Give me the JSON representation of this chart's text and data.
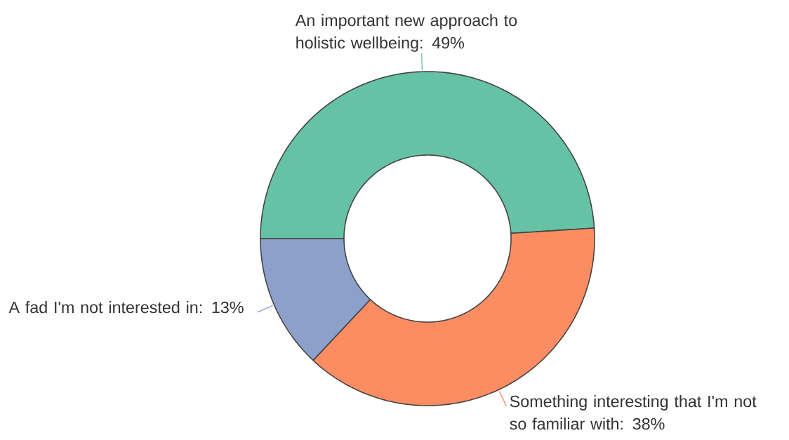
{
  "chart_data": {
    "type": "donut",
    "categories": [
      "An important new approach to holistic wellbeing: 49%",
      "Something interesting that I'm not so familiar with: 38%",
      "A fad I'm not interested in: 13%"
    ],
    "values": [
      49,
      38,
      13
    ],
    "colors": [
      "#66c2a5",
      "#fc8d62",
      "#8da0cb"
    ]
  }
}
